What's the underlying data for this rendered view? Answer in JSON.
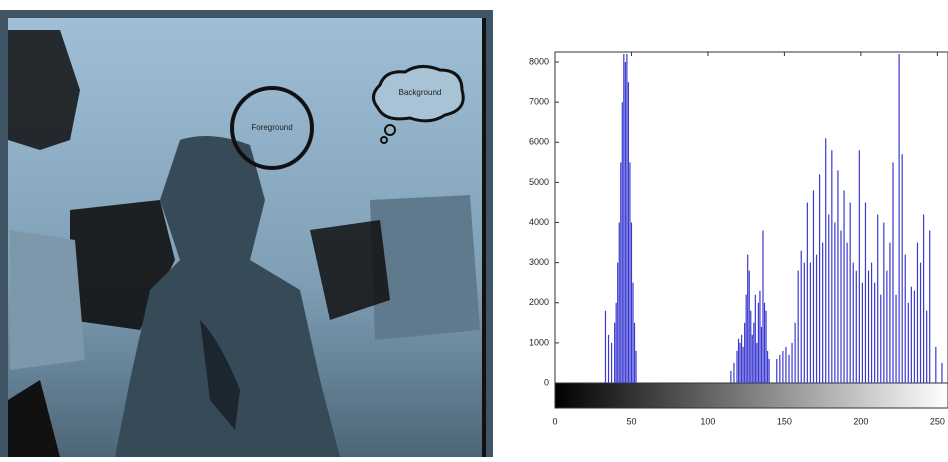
{
  "image": {
    "labels": [
      "Foreground",
      "Background"
    ]
  },
  "chart_data": {
    "type": "stem",
    "color": "#3a3ad0",
    "x": [
      33,
      35,
      37,
      39,
      40,
      41,
      42,
      43,
      44,
      45,
      46,
      47,
      48,
      49,
      50,
      51,
      52,
      53,
      115,
      117,
      119,
      120,
      121,
      122,
      123,
      124,
      125,
      126,
      127,
      128,
      129,
      130,
      131,
      132,
      133,
      134,
      135,
      136,
      137,
      138,
      139,
      140,
      145,
      147,
      149,
      151,
      153,
      155,
      157,
      159,
      161,
      163,
      165,
      167,
      169,
      171,
      173,
      175,
      177,
      179,
      181,
      183,
      185,
      187,
      189,
      191,
      193,
      195,
      197,
      199,
      201,
      203,
      205,
      207,
      209,
      211,
      213,
      215,
      217,
      219,
      221,
      223,
      225,
      227,
      229,
      231,
      233,
      235,
      237,
      239,
      241,
      243,
      245,
      249,
      253
    ],
    "values": [
      1800,
      1200,
      1000,
      1500,
      2000,
      3000,
      4000,
      5500,
      7000,
      8200,
      8000,
      8200,
      7500,
      5500,
      4000,
      2500,
      1500,
      800,
      300,
      500,
      800,
      1100,
      1000,
      1200,
      900,
      1500,
      2200,
      3200,
      2800,
      1800,
      1200,
      1500,
      2200,
      1000,
      2000,
      2300,
      1400,
      3800,
      2000,
      1800,
      800,
      600,
      600,
      700,
      800,
      900,
      700,
      1000,
      1500,
      2800,
      3300,
      3000,
      4500,
      3000,
      4800,
      3200,
      5200,
      3500,
      6100,
      4200,
      5800,
      4000,
      5300,
      3800,
      4800,
      3500,
      4500,
      3000,
      2800,
      5800,
      2500,
      4500,
      2800,
      3000,
      2500,
      4200,
      2200,
      4000,
      2800,
      3500,
      5500,
      2200,
      8200,
      5700,
      3200,
      2000,
      2400,
      2300,
      3500,
      3000,
      4200,
      1800,
      3800,
      900,
      500
    ],
    "xlim": [
      0,
      255
    ],
    "ylim": [
      0,
      8250
    ],
    "xticks": [
      0,
      50,
      100,
      150,
      200,
      250
    ],
    "yticks": [
      0,
      1000,
      2000,
      3000,
      4000,
      5000,
      6000,
      7000,
      8000
    ]
  }
}
